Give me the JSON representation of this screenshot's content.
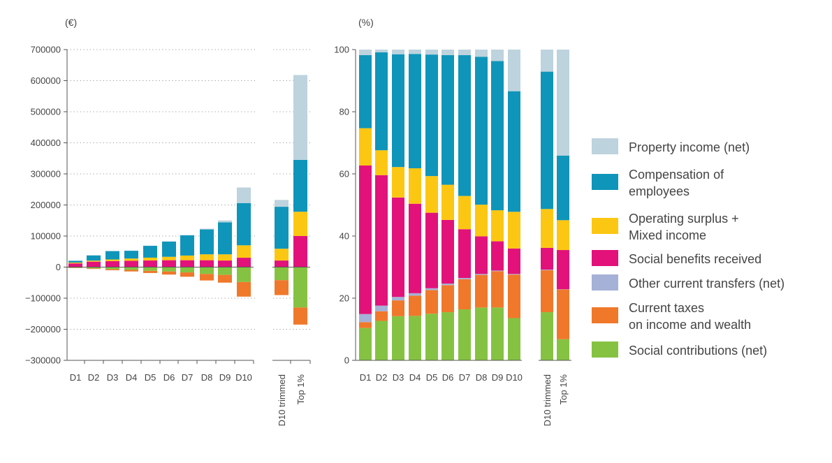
{
  "colors": {
    "property": "#bdd3de",
    "compensation": "#0f95b9",
    "operating": "#fcc712",
    "benefits": "#e2127a",
    "transfers": "#a5b1d6",
    "taxes": "#f0782b",
    "contributions": "#86c242"
  },
  "legend": [
    {
      "key": "property",
      "lines": [
        "Property income (net)"
      ]
    },
    {
      "key": "compensation",
      "lines": [
        "Compensation of",
        "employees"
      ]
    },
    {
      "key": "operating",
      "lines": [
        "Operating surplus +",
        "Mixed income"
      ]
    },
    {
      "key": "benefits",
      "lines": [
        "Social benefits received"
      ]
    },
    {
      "key": "transfers",
      "lines": [
        "Other current transfers (net)"
      ]
    },
    {
      "key": "taxes",
      "lines": [
        "Current taxes",
        "on income and wealth"
      ]
    },
    {
      "key": "contributions",
      "lines": [
        "Social contributions (net)"
      ]
    }
  ],
  "chart_data": [
    {
      "type": "bar",
      "stacked": true,
      "unit_label": "(€)",
      "ylim": [
        -300000,
        700000
      ],
      "yticks": [
        -300000,
        -200000,
        -100000,
        0,
        100000,
        200000,
        300000,
        400000,
        500000,
        600000,
        700000
      ],
      "ytick_labels": [
        "−300000",
        "−200000",
        "−100000",
        "0",
        "100000",
        "200000",
        "300000",
        "400000",
        "500000",
        "600000",
        "700000"
      ],
      "grid": "horizontal dotted",
      "categories": [
        "D1",
        "D2",
        "D3",
        "D4",
        "D5",
        "D6",
        "D7",
        "D8",
        "D9",
        "D10",
        "D10 trimmed",
        "Top 1%"
      ],
      "series": [
        {
          "key": "contributions",
          "values": [
            -2000,
            -4000,
            -7000,
            -9000,
            -12000,
            -14000,
            -17000,
            -22000,
            -25000,
            -48000,
            -42000,
            -130000
          ]
        },
        {
          "key": "taxes",
          "values": [
            -1000,
            -2000,
            -3000,
            -5000,
            -7000,
            -10000,
            -14000,
            -21000,
            -25000,
            -47000,
            -48000,
            -55000
          ]
        },
        {
          "key": "transfers",
          "values": [
            1000,
            600,
            400,
            300,
            300,
            200,
            200,
            200,
            200,
            200,
            200,
            200
          ]
        },
        {
          "key": "benefits",
          "values": [
            11000,
            17000,
            19000,
            20000,
            21000,
            22000,
            22000,
            22000,
            21000,
            30000,
            21000,
            100000
          ]
        },
        {
          "key": "operating",
          "values": [
            2700,
            3300,
            5200,
            7400,
            9200,
            11000,
            15000,
            19000,
            20000,
            40000,
            38000,
            78000
          ]
        },
        {
          "key": "compensation",
          "values": [
            5700,
            17000,
            27000,
            25000,
            38000,
            49000,
            65000,
            80000,
            103000,
            136000,
            135000,
            167000
          ]
        },
        {
          "key": "property",
          "values": [
            300,
            400,
            500,
            500,
            600,
            800,
            1200,
            2500,
            6000,
            50000,
            22000,
            273000
          ]
        }
      ]
    },
    {
      "type": "bar",
      "stacked": true,
      "unit_label": "(%)",
      "ylim": [
        0,
        100
      ],
      "yticks": [
        0,
        20,
        40,
        60,
        80,
        100
      ],
      "ytick_labels": [
        "0",
        "20",
        "40",
        "60",
        "80",
        "100"
      ],
      "grid": "none",
      "categories": [
        "D1",
        "D2",
        "D3",
        "D4",
        "D5",
        "D6",
        "D7",
        "D8",
        "D9",
        "D10",
        "D10 trimmed",
        "Top 1%"
      ],
      "series": [
        {
          "key": "contributions",
          "values": [
            10.4,
            12.7,
            14.2,
            14.3,
            15.0,
            15.5,
            16.4,
            17.0,
            17.0,
            13.6,
            15.5,
            6.8
          ]
        },
        {
          "key": "taxes",
          "values": [
            1.9,
            3.1,
            5.1,
            6.5,
            7.6,
            8.7,
            9.7,
            10.5,
            11.7,
            14.0,
            13.5,
            16.0
          ]
        },
        {
          "key": "transfers",
          "values": [
            2.6,
            1.8,
            1.1,
            0.8,
            0.6,
            0.5,
            0.4,
            0.3,
            0.2,
            0.2,
            0.2,
            0.1
          ]
        },
        {
          "key": "benefits",
          "values": [
            47.8,
            42.0,
            32.0,
            28.8,
            24.3,
            20.5,
            15.7,
            12.1,
            9.4,
            8.2,
            7.0,
            12.6
          ]
        },
        {
          "key": "operating",
          "values": [
            12.0,
            8.0,
            9.8,
            11.4,
            11.8,
            11.3,
            10.7,
            10.2,
            10.0,
            11.8,
            12.5,
            9.6
          ]
        },
        {
          "key": "compensation",
          "values": [
            23.5,
            31.5,
            36.3,
            36.8,
            39.1,
            41.7,
            45.3,
            47.6,
            48.0,
            38.8,
            44.2,
            20.8
          ]
        },
        {
          "key": "property",
          "values": [
            1.8,
            0.9,
            1.5,
            1.4,
            1.6,
            1.8,
            1.8,
            2.3,
            3.7,
            13.4,
            7.1,
            34.1
          ]
        }
      ]
    }
  ]
}
